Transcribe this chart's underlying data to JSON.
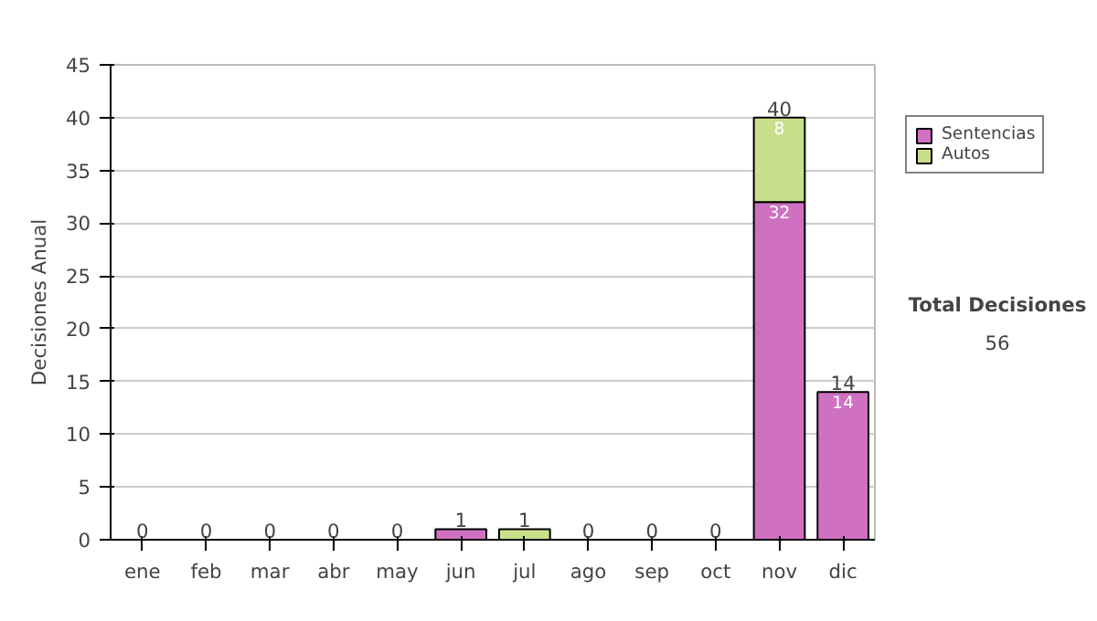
{
  "chart_data": {
    "type": "bar",
    "stacked": true,
    "ylabel": "Decisiones Anual",
    "categories": [
      "ene",
      "feb",
      "mar",
      "abr",
      "may",
      "jun",
      "jul",
      "ago",
      "sep",
      "oct",
      "nov",
      "dic"
    ],
    "series": [
      {
        "name": "Sentencias",
        "color": "#d070c0",
        "values": [
          0,
          0,
          0,
          0,
          0,
          1,
          0,
          0,
          0,
          0,
          32,
          14
        ],
        "value_labels": [
          null,
          null,
          null,
          null,
          null,
          null,
          null,
          null,
          null,
          null,
          "32",
          "14"
        ]
      },
      {
        "name": "Autos",
        "color": "#c8e08c",
        "values": [
          0,
          0,
          0,
          0,
          0,
          0,
          1,
          0,
          0,
          0,
          8,
          0
        ],
        "value_labels": [
          null,
          null,
          null,
          null,
          null,
          null,
          null,
          null,
          null,
          null,
          "8",
          null
        ]
      }
    ],
    "totals": [
      "0",
      "0",
      "0",
      "0",
      "0",
      "1",
      "1",
      "0",
      "0",
      "0",
      "40",
      "14"
    ],
    "ylim": [
      0,
      45
    ],
    "yticks": [
      0,
      5,
      10,
      15,
      20,
      25,
      30,
      35,
      40,
      45
    ],
    "grid": "y",
    "legend": "right",
    "annotations": [
      "Total Decisiones",
      "56"
    ]
  }
}
